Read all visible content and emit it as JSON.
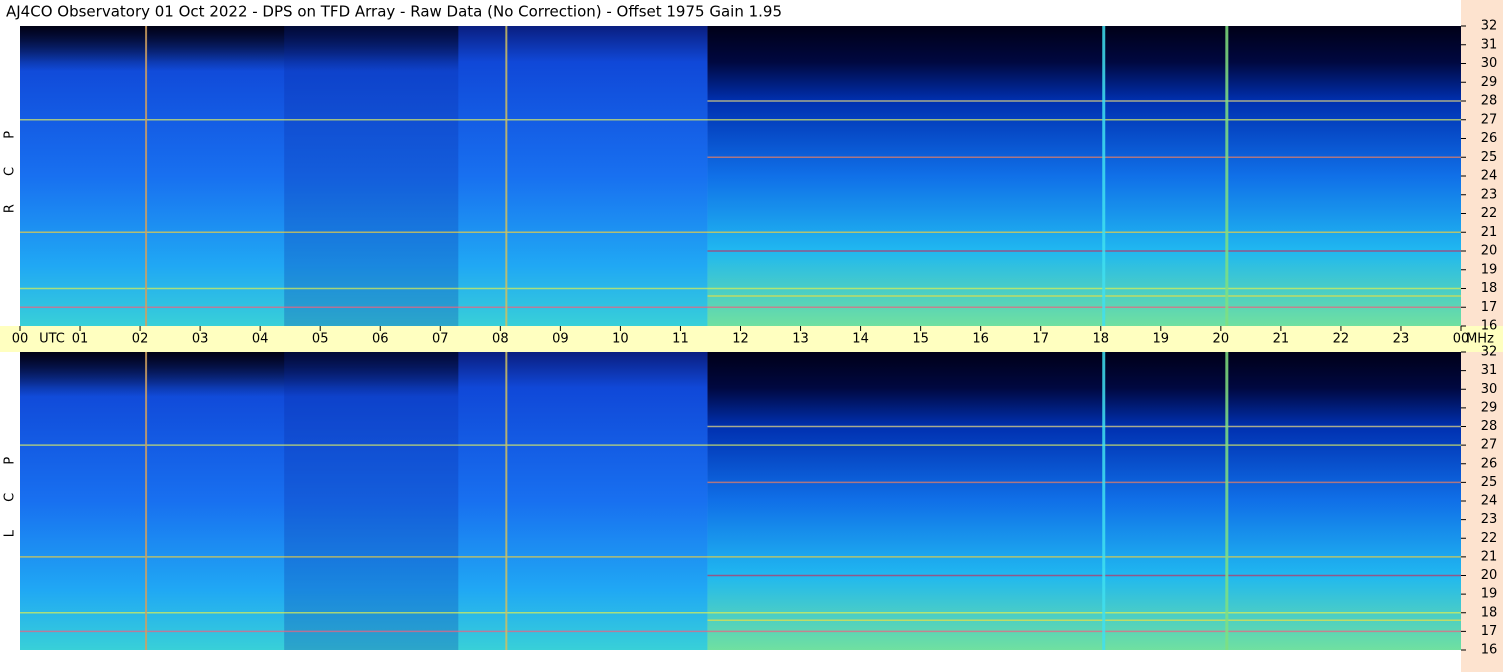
{
  "title": "AJ4CO Observatory  01 Oct 2022  -  DPS on TFD Array  -  Raw Data (No Correction)  -  Offset 1975  Gain 1.95",
  "x_unit_left": "UTC",
  "x_unit_right": "MHz",
  "chart_data": [
    {
      "type": "spectrogram",
      "name": "R C P",
      "xlim": [
        0,
        24
      ],
      "xticks": [
        {
          "value": 0,
          "label": "00"
        },
        {
          "value": 1,
          "label": "01"
        },
        {
          "value": 2,
          "label": "02"
        },
        {
          "value": 3,
          "label": "03"
        },
        {
          "value": 4,
          "label": "04"
        },
        {
          "value": 5,
          "label": "05"
        },
        {
          "value": 6,
          "label": "06"
        },
        {
          "value": 7,
          "label": "07"
        },
        {
          "value": 8,
          "label": "08"
        },
        {
          "value": 9,
          "label": "09"
        },
        10,
        11,
        12,
        13,
        14,
        15,
        16,
        17,
        18,
        19,
        20,
        21,
        22,
        23,
        {
          "value": 24,
          "label": "00"
        }
      ],
      "ylim": [
        16,
        32
      ],
      "yticks": [
        16,
        17,
        18,
        19,
        20,
        21,
        22,
        23,
        24,
        25,
        26,
        27,
        28,
        29,
        30,
        31,
        32
      ]
    },
    {
      "type": "spectrogram",
      "name": "L C P",
      "ylim": [
        16,
        32
      ],
      "yticks": [
        16,
        17,
        18,
        19,
        20,
        21,
        22,
        23,
        24,
        25,
        26,
        27,
        28,
        29,
        30,
        31,
        32
      ]
    }
  ]
}
